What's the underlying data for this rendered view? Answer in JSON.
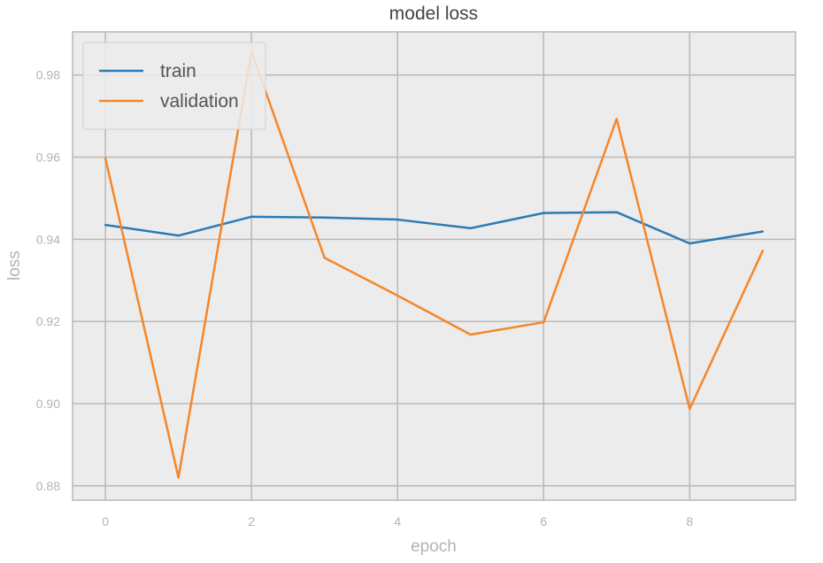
{
  "chart_data": {
    "type": "line",
    "title": "model loss",
    "xlabel": "epoch",
    "ylabel": "loss",
    "x": [
      0,
      1,
      2,
      3,
      4,
      5,
      6,
      7,
      8,
      9
    ],
    "xlim": [
      -0.45,
      9.45
    ],
    "ylim": [
      0.8765,
      0.9905
    ],
    "xticks": [
      0,
      2,
      4,
      6,
      8
    ],
    "xtick_labels": [
      "0",
      "2",
      "4",
      "6",
      "8"
    ],
    "yticks": [
      0.88,
      0.9,
      0.92,
      0.94,
      0.96,
      0.98
    ],
    "ytick_labels": [
      "0.88",
      "0.90",
      "0.92",
      "0.94",
      "0.96",
      "0.98"
    ],
    "grid": true,
    "legend_position": "top-left",
    "series": [
      {
        "name": "train",
        "color": "#2a7bb4",
        "values": [
          0.9435,
          0.9409,
          0.9455,
          0.9453,
          0.9448,
          0.9427,
          0.9464,
          0.9466,
          0.939,
          0.9419
        ]
      },
      {
        "name": "validation",
        "color": "#f5862a",
        "values": [
          0.9597,
          0.882,
          0.9857,
          0.9355,
          0.9263,
          0.9168,
          0.9198,
          0.9693,
          0.8987,
          0.9372
        ]
      }
    ]
  }
}
